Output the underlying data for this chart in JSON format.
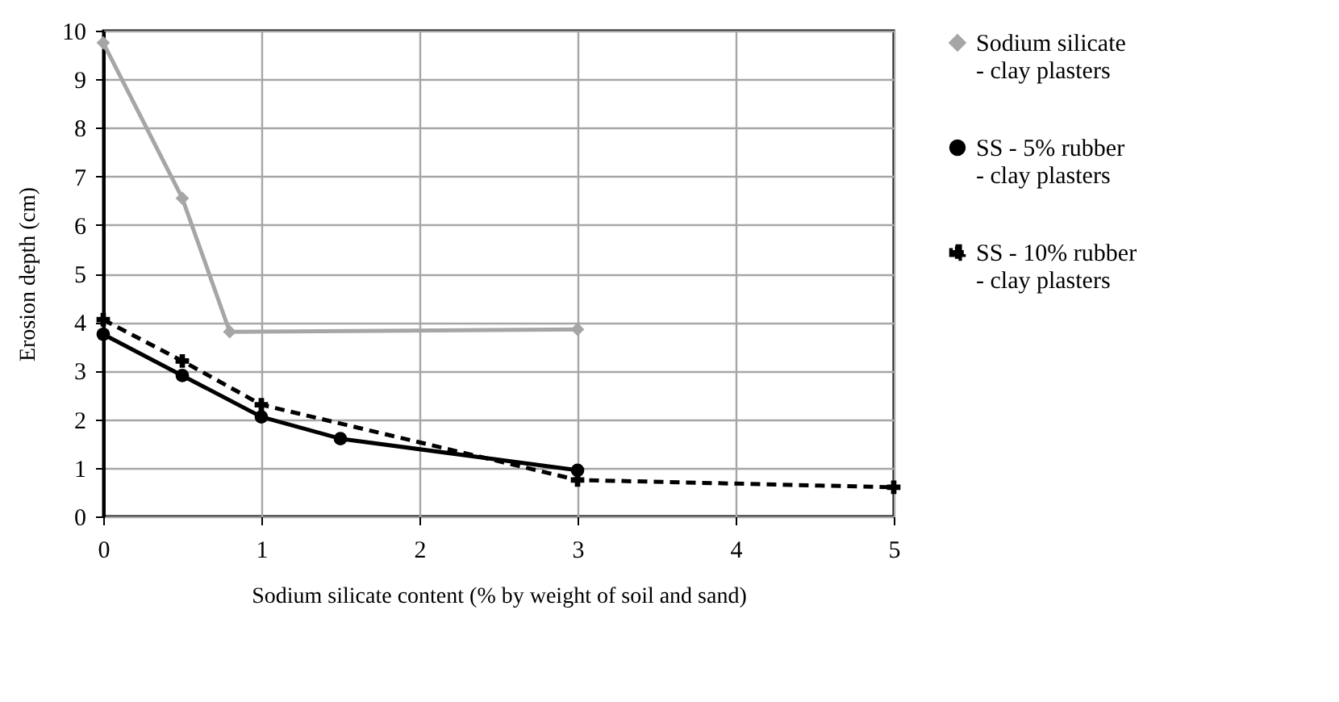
{
  "chart_data": {
    "type": "line",
    "xlabel": "Sodium silicate content (% by weight of soil and sand)",
    "ylabel": "Erosion depth (cm)",
    "xlim": [
      0,
      5
    ],
    "xticks": [
      0,
      1,
      2,
      3,
      4,
      5
    ],
    "ylim": [
      0,
      10
    ],
    "yticks": [
      0,
      1,
      2,
      3,
      4,
      5,
      6,
      7,
      8,
      9,
      10
    ],
    "grid": true,
    "legend": "right",
    "series": [
      {
        "name": "Sodium silicate\n- clay plasters",
        "color": "#a6a6a6",
        "marker": "diamond",
        "line_style": "solid",
        "x": [
          0,
          0.5,
          0.8,
          3
        ],
        "values": [
          9.75,
          6.55,
          3.8,
          3.85
        ]
      },
      {
        "name": "SS - 5% rubber\n- clay plasters",
        "color": "#000000",
        "marker": "circle",
        "line_style": "solid",
        "x": [
          0,
          0.5,
          1,
          1.5,
          3
        ],
        "values": [
          3.75,
          2.9,
          2.05,
          1.6,
          0.95
        ]
      },
      {
        "name": "SS - 10% rubber\n- clay plasters",
        "color": "#000000",
        "marker": "cross",
        "line_style": "dashed",
        "x": [
          0,
          0.5,
          1,
          3,
          5
        ],
        "values": [
          4.05,
          3.2,
          2.3,
          0.75,
          0.6
        ]
      }
    ]
  }
}
